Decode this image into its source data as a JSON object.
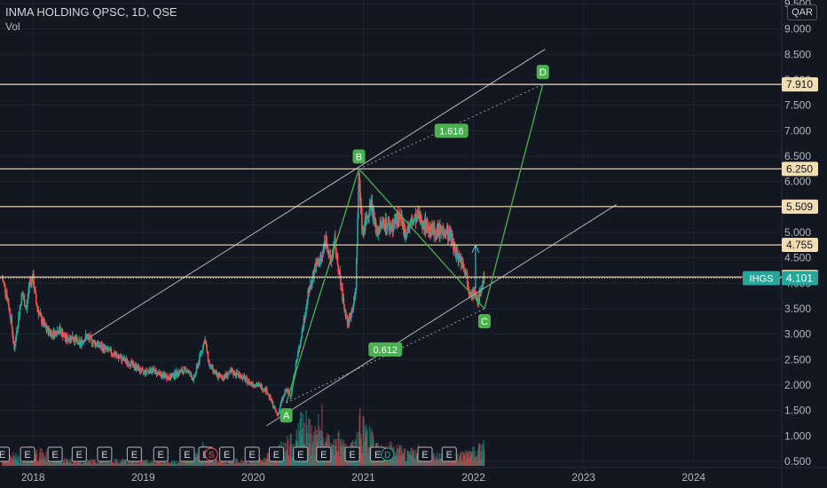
{
  "header": {
    "symbol": "INMA HOLDING QPSC, 1D, QSE",
    "volume_label": "Vol"
  },
  "currency": "QAR",
  "colors": {
    "background": "#131722",
    "up": "#26a69a",
    "down": "#ef5350",
    "level": "#f5deb3",
    "pattern": "#4caf50",
    "channel": "#b2b5be",
    "accent": "#26a69a"
  },
  "chart_data": {
    "type": "candlestick",
    "title": "INMA HOLDING QPSC, 1D, QSE",
    "price_axis": {
      "ticks": [
        "9.500",
        "9.000",
        "8.500",
        "8.000",
        "7.500",
        "7.000",
        "6.500",
        "6.000",
        "5.500",
        "5.000",
        "4.500",
        "4.000",
        "3.500",
        "3.000",
        "2.500",
        "2.000",
        "1.500",
        "1.000",
        "0.500"
      ],
      "ylim": [
        0.5,
        9.5
      ]
    },
    "time_axis": {
      "ticks": [
        "2018",
        "2019",
        "2020",
        "2021",
        "2022",
        "2023",
        "2024"
      ],
      "xlim": [
        2017.7,
        2024.8
      ]
    },
    "price_path": [
      [
        2017.72,
        4.1
      ],
      [
        2017.76,
        3.8
      ],
      [
        2017.8,
        3.3
      ],
      [
        2017.83,
        2.7
      ],
      [
        2017.86,
        3.2
      ],
      [
        2017.9,
        3.8
      ],
      [
        2017.94,
        3.5
      ],
      [
        2017.97,
        4.05
      ],
      [
        2018.0,
        4.1
      ],
      [
        2018.03,
        3.6
      ],
      [
        2018.07,
        3.3
      ],
      [
        2018.12,
        3.1
      ],
      [
        2018.18,
        3.0
      ],
      [
        2018.24,
        3.1
      ],
      [
        2018.3,
        2.9
      ],
      [
        2018.36,
        2.95
      ],
      [
        2018.42,
        2.8
      ],
      [
        2018.48,
        2.95
      ],
      [
        2018.55,
        2.85
      ],
      [
        2018.62,
        2.75
      ],
      [
        2018.7,
        2.65
      ],
      [
        2018.78,
        2.55
      ],
      [
        2018.86,
        2.45
      ],
      [
        2018.94,
        2.35
      ],
      [
        2019.0,
        2.25
      ],
      [
        2019.08,
        2.3
      ],
      [
        2019.16,
        2.2
      ],
      [
        2019.24,
        2.15
      ],
      [
        2019.32,
        2.25
      ],
      [
        2019.4,
        2.3
      ],
      [
        2019.46,
        2.1
      ],
      [
        2019.52,
        2.6
      ],
      [
        2019.56,
        2.9
      ],
      [
        2019.6,
        2.4
      ],
      [
        2019.66,
        2.2
      ],
      [
        2019.72,
        2.15
      ],
      [
        2019.8,
        2.25
      ],
      [
        2019.88,
        2.2
      ],
      [
        2019.96,
        2.05
      ],
      [
        2020.04,
        2.0
      ],
      [
        2020.12,
        1.9
      ],
      [
        2020.18,
        1.6
      ],
      [
        2020.22,
        1.4
      ],
      [
        2020.26,
        1.7
      ],
      [
        2020.3,
        1.9
      ],
      [
        2020.34,
        1.8
      ],
      [
        2020.38,
        2.3
      ],
      [
        2020.44,
        3.0
      ],
      [
        2020.5,
        3.8
      ],
      [
        2020.56,
        4.3
      ],
      [
        2020.62,
        4.5
      ],
      [
        2020.66,
        4.9
      ],
      [
        2020.7,
        4.4
      ],
      [
        2020.74,
        4.8
      ],
      [
        2020.78,
        4.2
      ],
      [
        2020.82,
        3.6
      ],
      [
        2020.86,
        3.2
      ],
      [
        2020.9,
        3.5
      ],
      [
        2020.93,
        3.8
      ],
      [
        2020.96,
        6.2
      ],
      [
        2020.99,
        5.0
      ],
      [
        2021.03,
        5.3
      ],
      [
        2021.07,
        5.6
      ],
      [
        2021.12,
        5.0
      ],
      [
        2021.18,
        5.2
      ],
      [
        2021.25,
        5.1
      ],
      [
        2021.32,
        5.3
      ],
      [
        2021.38,
        5.0
      ],
      [
        2021.44,
        5.2
      ],
      [
        2021.5,
        5.3
      ],
      [
        2021.58,
        5.1
      ],
      [
        2021.66,
        5.0
      ],
      [
        2021.74,
        5.05
      ],
      [
        2021.8,
        4.9
      ],
      [
        2021.84,
        4.6
      ],
      [
        2021.88,
        4.5
      ],
      [
        2021.92,
        4.3
      ],
      [
        2021.96,
        3.9
      ],
      [
        2022.0,
        3.8
      ],
      [
        2022.04,
        3.65
      ],
      [
        2022.07,
        3.9
      ],
      [
        2022.1,
        4.1
      ]
    ],
    "volume_path": [
      [
        2017.72,
        0.25
      ],
      [
        2017.8,
        0.2
      ],
      [
        2017.9,
        0.15
      ],
      [
        2018.0,
        0.3
      ],
      [
        2018.2,
        0.15
      ],
      [
        2018.4,
        0.1
      ],
      [
        2018.6,
        0.1
      ],
      [
        2018.8,
        0.1
      ],
      [
        2019.0,
        0.1
      ],
      [
        2019.3,
        0.08
      ],
      [
        2019.56,
        0.35
      ],
      [
        2019.7,
        0.1
      ],
      [
        2019.9,
        0.1
      ],
      [
        2020.1,
        0.15
      ],
      [
        2020.22,
        0.3
      ],
      [
        2020.38,
        0.5
      ],
      [
        2020.44,
        0.9
      ],
      [
        2020.5,
        0.7
      ],
      [
        2020.56,
        0.6
      ],
      [
        2020.62,
        0.9
      ],
      [
        2020.66,
        0.5
      ],
      [
        2020.7,
        0.4
      ],
      [
        2020.78,
        0.5
      ],
      [
        2020.86,
        0.3
      ],
      [
        2020.93,
        0.4
      ],
      [
        2020.96,
        1.0
      ],
      [
        2021.0,
        0.8
      ],
      [
        2021.06,
        0.6
      ],
      [
        2021.12,
        0.4
      ],
      [
        2021.25,
        0.35
      ],
      [
        2021.4,
        0.25
      ],
      [
        2021.5,
        0.3
      ],
      [
        2021.6,
        0.25
      ],
      [
        2021.7,
        0.2
      ],
      [
        2021.8,
        0.2
      ],
      [
        2021.9,
        0.2
      ],
      [
        2022.0,
        0.3
      ],
      [
        2022.08,
        0.35
      ]
    ],
    "horizontal_levels": [
      {
        "price": 7.91,
        "label": "7.910"
      },
      {
        "price": 6.25,
        "label": "6.250"
      },
      {
        "price": 5.509,
        "label": "5.509"
      },
      {
        "price": 4.755,
        "label": "4.755"
      },
      {
        "price": 4.125,
        "label": "4.125"
      }
    ],
    "current_price": {
      "price": 4.101,
      "label": "4.101",
      "symbol": "IHGS"
    },
    "abcd_pattern": {
      "points": [
        {
          "label": "A",
          "x": 2020.3,
          "price": 1.65
        },
        {
          "label": "B",
          "x": 2020.96,
          "price": 6.25
        },
        {
          "label": "C",
          "x": 2022.1,
          "price": 3.5
        },
        {
          "label": "D",
          "x": 2022.63,
          "price": 7.91
        }
      ],
      "ratios": [
        {
          "label": "1.616",
          "x": 2021.8,
          "price": 7.0
        },
        {
          "label": "0.612",
          "x": 2021.2,
          "price": 2.7
        }
      ]
    },
    "channel": {
      "upper": [
        [
          2018.52,
          2.95
        ],
        [
          2022.65,
          8.6
        ]
      ],
      "lower": [
        [
          2020.12,
          1.2
        ],
        [
          2023.3,
          5.55
        ]
      ]
    },
    "event_markers": {
      "earnings": [
        2017.72,
        2017.95,
        2018.2,
        2018.42,
        2018.65,
        2018.92,
        2019.16,
        2019.4,
        2019.57,
        2019.76,
        2019.99,
        2020.21,
        2020.43,
        2020.64,
        2020.9,
        2021.13,
        2021.56,
        2021.78
      ],
      "split": [
        2019.62
      ],
      "dividend": [
        2021.22
      ]
    }
  }
}
